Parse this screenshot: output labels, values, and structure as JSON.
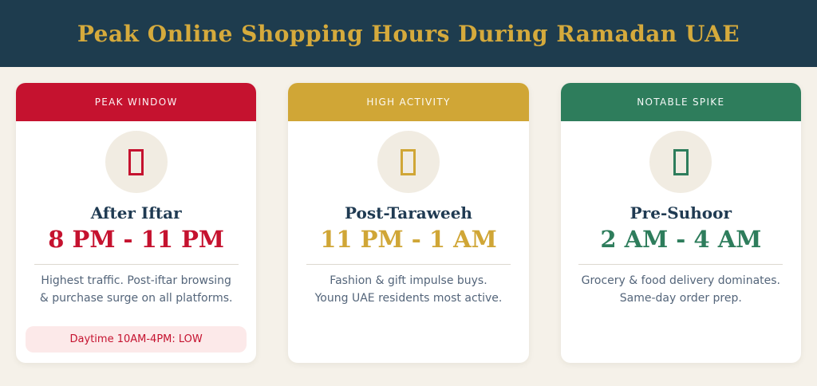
{
  "page": {
    "background": "#f5f1e9"
  },
  "header": {
    "title": "Peak Online Shopping Hours During Ramadan UAE",
    "background": "#1e3c4e",
    "title_color": "#d5aa3c"
  },
  "cards": [
    {
      "label": "PEAK WINDOW",
      "accent": "#c5122f",
      "icon": "placeholder-glyph-box",
      "title": "After Iftar",
      "time": "8 PM - 11 PM",
      "description_lines": [
        "Highest traffic. Post-iftar browsing",
        "& purchase surge on all platforms."
      ],
      "badge": "Daytime 10AM-4PM: LOW",
      "badge_bg": "#fce9e9",
      "badge_text_color": "#c5122f"
    },
    {
      "label": "HIGH ACTIVITY",
      "accent": "#d0a636",
      "icon": "placeholder-glyph-box",
      "title": "Post-Taraweeh",
      "time": "11 PM - 1 AM",
      "description_lines": [
        "Fashion & gift impulse buys.",
        "Young UAE residents most active."
      ]
    },
    {
      "label": "NOTABLE SPIKE",
      "accent": "#2e7d5c",
      "icon": "placeholder-glyph-box",
      "title": "Pre-Suhoor",
      "time": "2 AM - 4 AM",
      "description_lines": [
        "Grocery & food delivery dominates.",
        "Same-day order prep."
      ]
    }
  ]
}
